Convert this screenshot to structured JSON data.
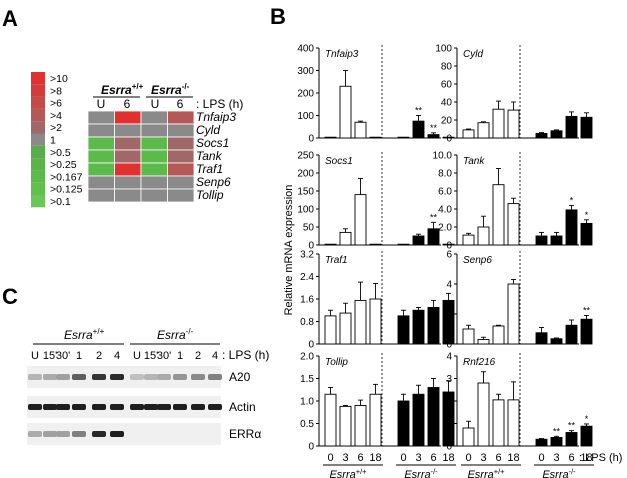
{
  "panel_labels": {
    "a": "A",
    "b": "B",
    "c": "C"
  },
  "heatmap": {
    "legend": [
      {
        "label": ">10",
        "color": "#e03030"
      },
      {
        "label": ">8",
        "color": "#d23c3c"
      },
      {
        "label": ">6",
        "color": "#c44a4a"
      },
      {
        "label": ">4",
        "color": "#b45858"
      },
      {
        "label": ">2",
        "color": "#a06868"
      },
      {
        "label": "1",
        "color": "#8a8a8a"
      },
      {
        "label": ">0.5",
        "color": "#58ad4a"
      },
      {
        "label": ">0.25",
        "color": "#5ab44a"
      },
      {
        "label": ">0.167",
        "color": "#5cba4c"
      },
      {
        "label": ">0.125",
        "color": "#62c050"
      },
      {
        "label": ">0.1",
        "color": "#6ac658"
      }
    ],
    "group_wt": "Esrra",
    "group_wt_sup": "+/+",
    "group_ko": "Esrra",
    "group_ko_sup": "-/-",
    "columns": [
      "U",
      "6",
      "U",
      "6"
    ],
    "lps_label": ": LPS (h)",
    "genes": [
      "Tnfaip3",
      "Cyld",
      "Socs1",
      "Tank",
      "Traf1",
      "Senp6",
      "Tollip"
    ],
    "cells": [
      [
        "#8a8a8a",
        "#e03030",
        "#8a8a8a",
        "#b45858"
      ],
      [
        "#8a8a8a",
        "#8a8a8a",
        "#8a8a8a",
        "#8a8a8a"
      ],
      [
        "#5cba4c",
        "#a06868",
        "#5cba4c",
        "#a06868"
      ],
      [
        "#5cba4c",
        "#a06868",
        "#5cba4c",
        "#a06868"
      ],
      [
        "#5cba4c",
        "#e03030",
        "#5cba4c",
        "#b45858"
      ],
      [
        "#8a8a8a",
        "#8a8a8a",
        "#8a8a8a",
        "#8a8a8a"
      ],
      [
        "#8a8a8a",
        "#8a8a8a",
        "#8a8a8a",
        "#8a8a8a"
      ]
    ]
  },
  "western": {
    "group_wt": "Esrra",
    "group_wt_sup": "+/+",
    "group_ko": "Esrra",
    "group_ko_sup": "-/-",
    "timepoints": [
      "U",
      "15'",
      "30'",
      "1",
      "2",
      "4",
      "U",
      "15'",
      "30'",
      "1",
      "2",
      "4"
    ],
    "lps_label": ": LPS (h)",
    "blots": [
      {
        "label": "A20",
        "intensity": [
          0.25,
          0.3,
          0.35,
          0.65,
          0.85,
          0.9,
          0.2,
          0.25,
          0.3,
          0.4,
          0.45,
          0.5
        ]
      },
      {
        "label": "Actin",
        "intensity": [
          0.95,
          0.95,
          0.95,
          0.95,
          0.95,
          0.95,
          0.95,
          0.95,
          0.95,
          0.95,
          0.95,
          0.95
        ]
      },
      {
        "label": "ERRα",
        "intensity": [
          0.3,
          0.35,
          0.35,
          0.5,
          0.9,
          0.95,
          0,
          0,
          0,
          0,
          0,
          0
        ]
      }
    ]
  },
  "ylabel": "Relative mRNA expression",
  "x_ticks": [
    "0",
    "3",
    "6",
    "18",
    "0",
    "3",
    "6",
    "18"
  ],
  "x_lps_label": ": LPS (h)",
  "x_group_wt": "Esrra",
  "x_group_wt_sup": "+/+",
  "x_group_ko": "Esrra",
  "x_group_ko_sup": "-/-",
  "chart_data": [
    {
      "type": "bar",
      "title": "Tnfaip3",
      "ylim": [
        0,
        400
      ],
      "yticks": [
        "0",
        "100",
        "200",
        "300",
        "400"
      ],
      "categories": [
        "0",
        "3",
        "6",
        "18"
      ],
      "series": [
        {
          "name": "Esrra+/+",
          "values": [
            0,
            230,
            70,
            0
          ],
          "errors": [
            0,
            70,
            5,
            0
          ],
          "stars": [
            "",
            "",
            "",
            ""
          ]
        },
        {
          "name": "Esrra-/-",
          "values": [
            0,
            75,
            15,
            0
          ],
          "errors": [
            0,
            25,
            8,
            0
          ],
          "stars": [
            "",
            "**",
            "**",
            ""
          ]
        }
      ]
    },
    {
      "type": "bar",
      "title": "Cyld",
      "ylim": [
        0,
        100
      ],
      "yticks": [
        "0",
        "20",
        "40",
        "60",
        "80",
        "100"
      ],
      "categories": [
        "0",
        "3",
        "6",
        "18"
      ],
      "series": [
        {
          "name": "Esrra+/+",
          "values": [
            9,
            17,
            32,
            31
          ],
          "errors": [
            1,
            1,
            9,
            9
          ],
          "stars": [
            "",
            "",
            "",
            ""
          ]
        },
        {
          "name": "Esrra-/-",
          "values": [
            5,
            8,
            24,
            23
          ],
          "errors": [
            1,
            1,
            5,
            5
          ],
          "stars": [
            "",
            "",
            "",
            ""
          ]
        }
      ]
    },
    {
      "type": "bar",
      "title": "Socs1",
      "ylim": [
        0,
        250
      ],
      "yticks": [
        "0",
        "50",
        "100",
        "150",
        "200",
        "250"
      ],
      "categories": [
        "0",
        "3",
        "6",
        "18"
      ],
      "series": [
        {
          "name": "Esrra+/+",
          "values": [
            0,
            35,
            140,
            0
          ],
          "errors": [
            0,
            10,
            45,
            0
          ],
          "stars": [
            "",
            "",
            "",
            ""
          ]
        },
        {
          "name": "Esrra-/-",
          "values": [
            0,
            25,
            45,
            0
          ],
          "errors": [
            0,
            5,
            18,
            0
          ],
          "stars": [
            "",
            "",
            "**",
            ""
          ]
        }
      ]
    },
    {
      "type": "bar",
      "title": "Tank",
      "ylim": [
        0,
        10
      ],
      "yticks": [
        "0",
        "2.0",
        "4.0",
        "6.0",
        "8.0",
        "10.0"
      ],
      "categories": [
        "0",
        "3",
        "6",
        "18"
      ],
      "series": [
        {
          "name": "Esrra+/+",
          "values": [
            1.1,
            2.0,
            6.7,
            4.6
          ],
          "errors": [
            0.2,
            1.2,
            1.8,
            0.6
          ],
          "stars": [
            "",
            "",
            "",
            ""
          ]
        },
        {
          "name": "Esrra-/-",
          "values": [
            1.0,
            1.0,
            3.9,
            2.4
          ],
          "errors": [
            0.4,
            0.4,
            0.5,
            0.4
          ],
          "stars": [
            "",
            "",
            "*",
            "*"
          ]
        }
      ]
    },
    {
      "type": "bar",
      "title": "Traf1",
      "ylim": [
        0,
        3.2
      ],
      "yticks": [
        "0",
        "0.8",
        "1.6",
        "2.4",
        "3.2"
      ],
      "categories": [
        "0",
        "3",
        "6",
        "18"
      ],
      "series": [
        {
          "name": "Esrra+/+",
          "values": [
            1.0,
            1.1,
            1.55,
            1.6
          ],
          "errors": [
            0.2,
            0.35,
            0.65,
            0.55
          ],
          "stars": [
            "",
            "",
            "",
            ""
          ]
        },
        {
          "name": "Esrra-/-",
          "values": [
            1.0,
            1.2,
            1.3,
            1.55
          ],
          "errors": [
            0.2,
            0.1,
            0.25,
            0.25
          ],
          "stars": [
            "",
            "",
            "",
            ""
          ]
        }
      ]
    },
    {
      "type": "bar",
      "title": "Senp6",
      "ylim": [
        0,
        6
      ],
      "yticks": [
        "0",
        "2",
        "4",
        "6"
      ],
      "categories": [
        "0",
        "3",
        "6",
        "18"
      ],
      "series": [
        {
          "name": "Esrra+/+",
          "values": [
            1.0,
            0.3,
            1.2,
            4.0
          ],
          "errors": [
            0.25,
            0.15,
            0.05,
            0.3
          ],
          "stars": [
            "",
            "",
            "",
            ""
          ]
        },
        {
          "name": "Esrra-/-",
          "values": [
            0.75,
            0.35,
            1.25,
            1.65
          ],
          "errors": [
            0.35,
            0.05,
            0.35,
            0.25
          ],
          "stars": [
            "",
            "",
            "",
            "**"
          ]
        }
      ]
    },
    {
      "type": "bar",
      "title": "Tollip",
      "ylim": [
        0,
        2
      ],
      "yticks": [
        "0",
        "0.5",
        "1.0",
        "1.5",
        "2.0"
      ],
      "categories": [
        "0",
        "3",
        "6",
        "18"
      ],
      "series": [
        {
          "name": "Esrra+/+",
          "values": [
            1.15,
            0.88,
            0.9,
            1.15
          ],
          "errors": [
            0.15,
            0.02,
            0.12,
            0.22
          ],
          "stars": [
            "",
            "",
            "",
            ""
          ]
        },
        {
          "name": "Esrra-/-",
          "values": [
            1.0,
            1.15,
            1.3,
            1.2
          ],
          "errors": [
            0.15,
            0.2,
            0.2,
            0.25
          ],
          "stars": [
            "",
            "",
            "",
            ""
          ]
        }
      ]
    },
    {
      "type": "bar",
      "title": "Rnf216",
      "ylim": [
        0,
        4
      ],
      "yticks": [
        "0",
        "1",
        "2",
        "3",
        "4"
      ],
      "categories": [
        "0",
        "3",
        "6",
        "18"
      ],
      "series": [
        {
          "name": "Esrra+/+",
          "values": [
            0.8,
            2.8,
            2.05,
            2.05
          ],
          "errors": [
            0.3,
            0.5,
            0.25,
            0.8
          ],
          "stars": [
            "",
            "",
            "",
            ""
          ]
        },
        {
          "name": "Esrra-/-",
          "values": [
            0.3,
            0.38,
            0.6,
            0.88
          ],
          "errors": [
            0.03,
            0.05,
            0.08,
            0.1
          ],
          "stars": [
            "",
            "**",
            "**",
            "*"
          ]
        }
      ]
    }
  ]
}
